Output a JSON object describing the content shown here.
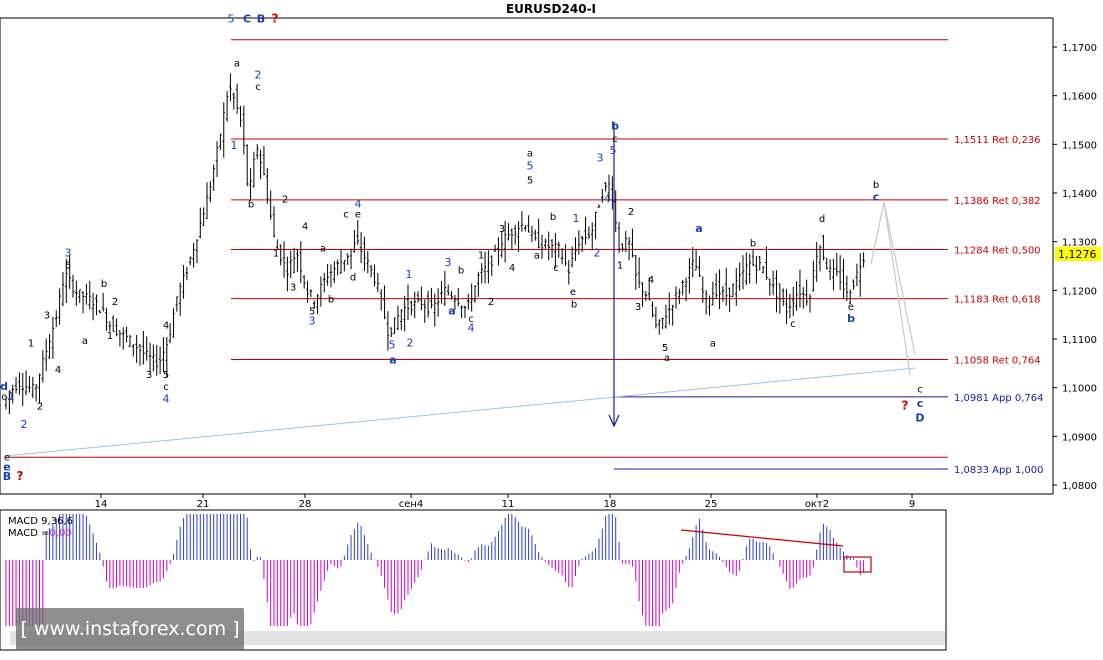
{
  "title": "EURUSD240-I",
  "watermark": "[ www.instaforex.com ]",
  "macd": {
    "label1": "MACD 9,36,6",
    "label2_prefix": "MACD =",
    "label2_value": "0,00"
  },
  "colors": {
    "level_red": "#cc0000",
    "level_blue": "#1a1a9c",
    "macd_pos": "#2c3fd0",
    "macd_neg": "#d000d0",
    "wave_blue": "#1a3fb5",
    "trend_line": "#9ec3db"
  },
  "chart_data": {
    "type": "candlestick",
    "symbol": "EURUSD",
    "timeframe": "H4",
    "ylim": [
      1.08,
      1.173
    ],
    "y_ticks": [
      "1,1700",
      "1,1600",
      "1,1500",
      "1,1400",
      "1,1300",
      "1,1200",
      "1,1100",
      "1,1000",
      "1,0900",
      "1,0800"
    ],
    "x_ticks": [
      "14",
      "21",
      "28",
      "сен4",
      "11",
      "18",
      "25",
      "окт2",
      "9"
    ],
    "current_price": "1,1276",
    "levels": [
      {
        "price": 1.1715,
        "label": "",
        "color": "red"
      },
      {
        "price": 1.1511,
        "label": "1,1511 Ret 0,236",
        "color": "red"
      },
      {
        "price": 1.1386,
        "label": "1,1386 Ret 0,382",
        "color": "red"
      },
      {
        "price": 1.1284,
        "label": "1,1284 Ret 0,500",
        "color": "red"
      },
      {
        "price": 1.1183,
        "label": "1,1183 Ret 0,618",
        "color": "red"
      },
      {
        "price": 1.1058,
        "label": "1,1058 Ret 0,764",
        "color": "red"
      },
      {
        "price": 1.0981,
        "label": "1,0981 App 0,764",
        "color": "blue"
      },
      {
        "price": 1.0857,
        "label": "",
        "color": "red"
      },
      {
        "price": 1.0833,
        "label": "1,0833 App 1,000",
        "color": "blue"
      }
    ],
    "wave_labels": [
      {
        "t": "d",
        "x": 4,
        "y": 1.0995,
        "c": "blue"
      },
      {
        "t": "c",
        "x": 4,
        "y": 1.0975,
        "c": "dark"
      },
      {
        "t": "1",
        "x": 11,
        "y": 1.0975,
        "c": "blue"
      },
      {
        "t": "2",
        "x": 24,
        "y": 1.0917,
        "c": "blue"
      },
      {
        "t": "e",
        "x": 7,
        "y": 1.085,
        "c": "dark"
      },
      {
        "t": "e",
        "x": 7,
        "y": 1.083,
        "c": "blue"
      },
      {
        "t": "B",
        "x": 7,
        "y": 1.081,
        "c": "blue"
      },
      {
        "t": "?",
        "x": 20,
        "y": 1.081,
        "c": "red"
      },
      {
        "t": "1",
        "x": 31,
        "y": 1.1085,
        "c": "dark"
      },
      {
        "t": "2",
        "x": 40,
        "y": 1.0955,
        "c": "dark"
      },
      {
        "t": "3",
        "x": 47,
        "y": 1.1142,
        "c": "dark"
      },
      {
        "t": "4",
        "x": 58,
        "y": 1.103,
        "c": "dark"
      },
      {
        "t": "3",
        "x": 68,
        "y": 1.127,
        "c": "blue"
      },
      {
        "t": "5",
        "x": 68,
        "y": 1.1245,
        "c": "dark"
      },
      {
        "t": "a",
        "x": 85,
        "y": 1.109,
        "c": "dark"
      },
      {
        "t": "b",
        "x": 104,
        "y": 1.1207,
        "c": "dark"
      },
      {
        "t": "2",
        "x": 115,
        "y": 1.117,
        "c": "dark"
      },
      {
        "t": "1",
        "x": 110,
        "y": 1.11,
        "c": "dark"
      },
      {
        "t": "3",
        "x": 149,
        "y": 1.102,
        "c": "dark"
      },
      {
        "t": "5",
        "x": 166,
        "y": 1.102,
        "c": "dark"
      },
      {
        "t": "c",
        "x": 166,
        "y": 1.0995,
        "c": "dark"
      },
      {
        "t": "4",
        "x": 166,
        "y": 1.097,
        "c": "blue"
      },
      {
        "t": "4",
        "x": 166,
        "y": 1.1122,
        "c": "dark"
      },
      {
        "t": "5",
        "x": 231,
        "y": 1.175,
        "c": "blue"
      },
      {
        "t": "C",
        "x": 247,
        "y": 1.175,
        "c": "blue"
      },
      {
        "t": "B",
        "x": 261,
        "y": 1.175,
        "c": "blue"
      },
      {
        "t": "?",
        "x": 275,
        "y": 1.175,
        "c": "red"
      },
      {
        "t": "a",
        "x": 237,
        "y": 1.166,
        "c": "dark"
      },
      {
        "t": "2",
        "x": 258,
        "y": 1.1635,
        "c": "blue"
      },
      {
        "t": "c",
        "x": 258,
        "y": 1.1612,
        "c": "dark"
      },
      {
        "t": "1",
        "x": 234,
        "y": 1.149,
        "c": "blue"
      },
      {
        "t": "b",
        "x": 251,
        "y": 1.137,
        "c": "dark"
      },
      {
        "t": "2",
        "x": 285,
        "y": 1.138,
        "c": "dark"
      },
      {
        "t": "4",
        "x": 305,
        "y": 1.1325,
        "c": "dark"
      },
      {
        "t": "1",
        "x": 276,
        "y": 1.127,
        "c": "dark"
      },
      {
        "t": "3",
        "x": 293,
        "y": 1.12,
        "c": "dark"
      },
      {
        "t": "a",
        "x": 323,
        "y": 1.128,
        "c": "dark"
      },
      {
        "t": "5",
        "x": 312,
        "y": 1.115,
        "c": "dark"
      },
      {
        "t": "3",
        "x": 312,
        "y": 1.113,
        "c": "blue"
      },
      {
        "t": "b",
        "x": 331,
        "y": 1.1175,
        "c": "dark"
      },
      {
        "t": "c",
        "x": 346,
        "y": 1.135,
        "c": "dark"
      },
      {
        "t": "4",
        "x": 358,
        "y": 1.137,
        "c": "blue"
      },
      {
        "t": "e",
        "x": 358,
        "y": 1.135,
        "c": "dark"
      },
      {
        "t": "d",
        "x": 353,
        "y": 1.122,
        "c": "dark"
      },
      {
        "t": "1",
        "x": 409,
        "y": 1.1225,
        "c": "blue"
      },
      {
        "t": "5",
        "x": 392,
        "y": 1.108,
        "c": "blue"
      },
      {
        "t": "a",
        "x": 393,
        "y": 1.105,
        "c": "blue"
      },
      {
        "t": "2",
        "x": 410,
        "y": 1.1085,
        "c": "blue"
      },
      {
        "t": "3",
        "x": 448,
        "y": 1.125,
        "c": "blue"
      },
      {
        "t": "b",
        "x": 461,
        "y": 1.1235,
        "c": "dark"
      },
      {
        "t": "a",
        "x": 452,
        "y": 1.115,
        "c": "blue"
      },
      {
        "t": "c",
        "x": 471,
        "y": 1.1135,
        "c": "dark"
      },
      {
        "t": "4",
        "x": 471,
        "y": 1.1115,
        "c": "blue"
      },
      {
        "t": "2",
        "x": 491,
        "y": 1.117,
        "c": "dark"
      },
      {
        "t": "1",
        "x": 481,
        "y": 1.1265,
        "c": "dark"
      },
      {
        "t": "3",
        "x": 502,
        "y": 1.132,
        "c": "dark"
      },
      {
        "t": "4",
        "x": 512,
        "y": 1.124,
        "c": "dark"
      },
      {
        "t": "a",
        "x": 530,
        "y": 1.1475,
        "c": "dark"
      },
      {
        "t": "5",
        "x": 530,
        "y": 1.1448,
        "c": "blue"
      },
      {
        "t": "5",
        "x": 530,
        "y": 1.142,
        "c": "dark"
      },
      {
        "t": "b",
        "x": 553,
        "y": 1.1345,
        "c": "dark"
      },
      {
        "t": "a",
        "x": 537,
        "y": 1.1265,
        "c": "dark"
      },
      {
        "t": "c",
        "x": 556,
        "y": 1.124,
        "c": "dark"
      },
      {
        "t": "1",
        "x": 576,
        "y": 1.134,
        "c": "blue"
      },
      {
        "t": "2",
        "x": 597,
        "y": 1.127,
        "c": "blue"
      },
      {
        "t": "e",
        "x": 573,
        "y": 1.119,
        "c": "dark"
      },
      {
        "t": "b",
        "x": 574,
        "y": 1.1165,
        "c": "dark"
      },
      {
        "t": "b",
        "x": 615,
        "y": 1.153,
        "c": "blue"
      },
      {
        "t": "c",
        "x": 615,
        "y": 1.1505,
        "c": "dark"
      },
      {
        "t": "5",
        "x": 613,
        "y": 1.148,
        "c": "blue"
      },
      {
        "t": "3",
        "x": 600,
        "y": 1.1465,
        "c": "blue"
      },
      {
        "t": "4",
        "x": 607,
        "y": 1.138,
        "c": "blue"
      },
      {
        "t": "2",
        "x": 631,
        "y": 1.1355,
        "c": "dark"
      },
      {
        "t": "1",
        "x": 620,
        "y": 1.1245,
        "c": "dark"
      },
      {
        "t": "4",
        "x": 651,
        "y": 1.1215,
        "c": "dark"
      },
      {
        "t": "3",
        "x": 638,
        "y": 1.116,
        "c": "dark"
      },
      {
        "t": "5",
        "x": 665,
        "y": 1.1075,
        "c": "dark"
      },
      {
        "t": "a",
        "x": 667,
        "y": 1.1055,
        "c": "dark"
      },
      {
        "t": "a",
        "x": 699,
        "y": 1.132,
        "c": "blue"
      },
      {
        "t": "a",
        "x": 713,
        "y": 1.1085,
        "c": "dark"
      },
      {
        "t": "b",
        "x": 753,
        "y": 1.129,
        "c": "dark"
      },
      {
        "t": "c",
        "x": 793,
        "y": 1.1125,
        "c": "dark"
      },
      {
        "t": "d",
        "x": 822,
        "y": 1.134,
        "c": "dark"
      },
      {
        "t": "e",
        "x": 851,
        "y": 1.116,
        "c": "dark"
      },
      {
        "t": "b",
        "x": 851,
        "y": 1.1135,
        "c": "blue"
      },
      {
        "t": "b",
        "x": 876,
        "y": 1.141,
        "c": "dark"
      },
      {
        "t": "c",
        "x": 876,
        "y": 1.1385,
        "c": "blue"
      },
      {
        "t": "c",
        "x": 920,
        "y": 1.099,
        "c": "dark"
      },
      {
        "t": "?",
        "x": 905,
        "y": 1.0955,
        "c": "red"
      },
      {
        "t": "c",
        "x": 920,
        "y": 1.096,
        "c": "blue"
      },
      {
        "t": "D",
        "x": 920,
        "y": 1.093,
        "c": "blue"
      }
    ]
  }
}
